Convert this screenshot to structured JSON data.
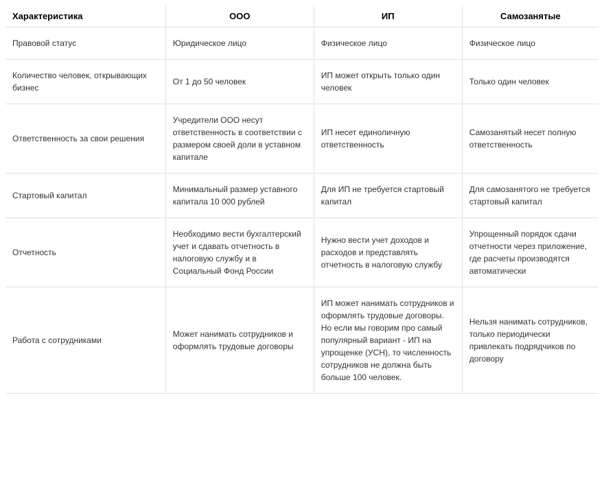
{
  "table": {
    "type": "table",
    "background_color": "#ffffff",
    "border_color": "#e0e0e0",
    "text_color": "#333333",
    "header_color": "#000000",
    "body_fontsize": 12,
    "header_fontsize": 13,
    "header_fontweight": "bold",
    "column_widths_pct": [
      27,
      25,
      25,
      23
    ],
    "columns": [
      "Характеристика",
      "ООО",
      "ИП",
      "Самозанятые"
    ],
    "rows": [
      {
        "c0": "Правовой статус",
        "c1": "Юридическое лицо",
        "c2": "Физическое лицо",
        "c3": "Физическое лицо"
      },
      {
        "c0": "Количество человек, открывающих бизнес",
        "c1": "От 1 до 50 человек",
        "c2": "ИП может открыть только один человек",
        "c3": "Только один человек"
      },
      {
        "c0": "Ответственность за свои решения",
        "c1": "Учредители ООО несут ответственность в соответствии с размером своей доли в уставном капитале",
        "c2": "ИП несет единоличную ответственность",
        "c3": "Самозанятый несет полную ответственность"
      },
      {
        "c0": "Стартовый капитал",
        "c1": "Минимальный размер уставного капитала 10 000 рублей",
        "c2": "Для ИП не требуется стартовый капитал",
        "c3": "Для самозанятого не требуется стартовый капитал"
      },
      {
        "c0": "Отчетность",
        "c1": "Необходимо вести бухгалтерский учет и сдавать отчетность в налоговую службу и в Социальный Фонд России",
        "c2": "Нужно вести учет доходов и расходов и представлять отчетность в налоговую службу",
        "c3": "Упрощенный порядок сдачи отчетности через приложение, где расчеты производятся автоматически"
      },
      {
        "c0": "Работа с сотрудниками",
        "c1": "Может нанимать сотрудников и оформлять трудовые договоры",
        "c2": "ИП может нанимать сотрудников и оформлять трудовые договоры. Но если мы говорим про самый популярный вариант - ИП на упрощенке (УСН), то численность сотрудников не должна быть больше 100 человек.",
        "c3": "Нельзя нанимать сотрудников, только периодически привлекать подрядчиков по договору"
      }
    ]
  }
}
